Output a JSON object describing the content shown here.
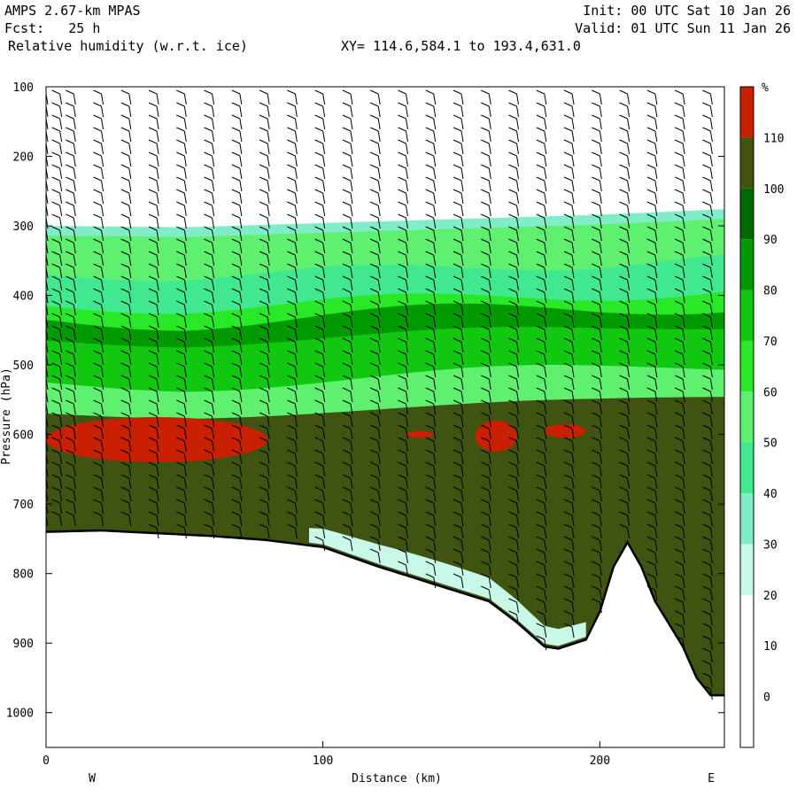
{
  "header": {
    "model": "AMPS 2.67-km MPAS",
    "fcst": "Fcst:   25 h",
    "field": "Relative humidity (w.r.t. ice)",
    "xy": "XY= 114.6,584.1 to 193.4,631.0",
    "init": "Init: 00 UTC Sat 10 Jan 26",
    "valid": "Valid: 01 UTC Sun 11 Jan 26"
  },
  "chart_data": {
    "type": "heatmap",
    "title": "Relative humidity (w.r.t. ice)",
    "xlabel": "Distance (km)",
    "ylabel": "Pressure (hPa)",
    "xlim": [
      0,
      245
    ],
    "ylim": [
      1050,
      100
    ],
    "x_ticks": [
      0,
      100,
      200
    ],
    "y_ticks": [
      100,
      200,
      300,
      400,
      500,
      600,
      700,
      800,
      900,
      1000
    ],
    "x_end_labels": {
      "left": "W",
      "right": "E"
    },
    "colorbar": {
      "unit": "%",
      "levels": [
        0,
        10,
        20,
        30,
        40,
        50,
        60,
        70,
        80,
        90,
        100,
        110
      ],
      "colors": [
        "#ffffff",
        "#ffffff",
        "#ffffff",
        "#c8f8e8",
        "#80ecc8",
        "#40e890",
        "#60f070",
        "#28e828",
        "#10c810",
        "#009a00",
        "#006800",
        "#3e5410",
        "#c82000"
      ]
    },
    "terrain_pressure": {
      "x": [
        0,
        20,
        40,
        60,
        80,
        100,
        120,
        140,
        160,
        170,
        180,
        185,
        195,
        200,
        205,
        210,
        215,
        220,
        230,
        235,
        240,
        245
      ],
      "p": [
        740,
        738,
        742,
        746,
        752,
        762,
        790,
        815,
        840,
        870,
        905,
        908,
        895,
        855,
        790,
        755,
        790,
        840,
        905,
        950,
        975,
        975
      ]
    },
    "moist_layer_top_hpa": {
      "x": [
        0,
        50,
        100,
        150,
        200,
        245
      ],
      "p": [
        300,
        302,
        296,
        290,
        284,
        276
      ]
    },
    "saturated_layers": [
      {
        "x": [
          0,
          80
        ],
        "p": [
          575,
          640
        ],
        "value": 110
      },
      {
        "x": [
          130,
          140
        ],
        "p": [
          595,
          605
        ],
        "value": 110
      },
      {
        "x": [
          155,
          170
        ],
        "p": [
          580,
          625
        ],
        "value": 110
      },
      {
        "x": [
          180,
          195
        ],
        "p": [
          585,
          605
        ],
        "value": 110
      }
    ],
    "wind_barb_x_km": [
      0,
      5,
      10,
      20,
      30,
      40,
      50,
      60,
      70,
      80,
      90,
      100,
      110,
      120,
      130,
      140,
      150,
      160,
      170,
      180,
      190,
      200,
      210,
      220,
      230,
      240
    ],
    "series": []
  }
}
